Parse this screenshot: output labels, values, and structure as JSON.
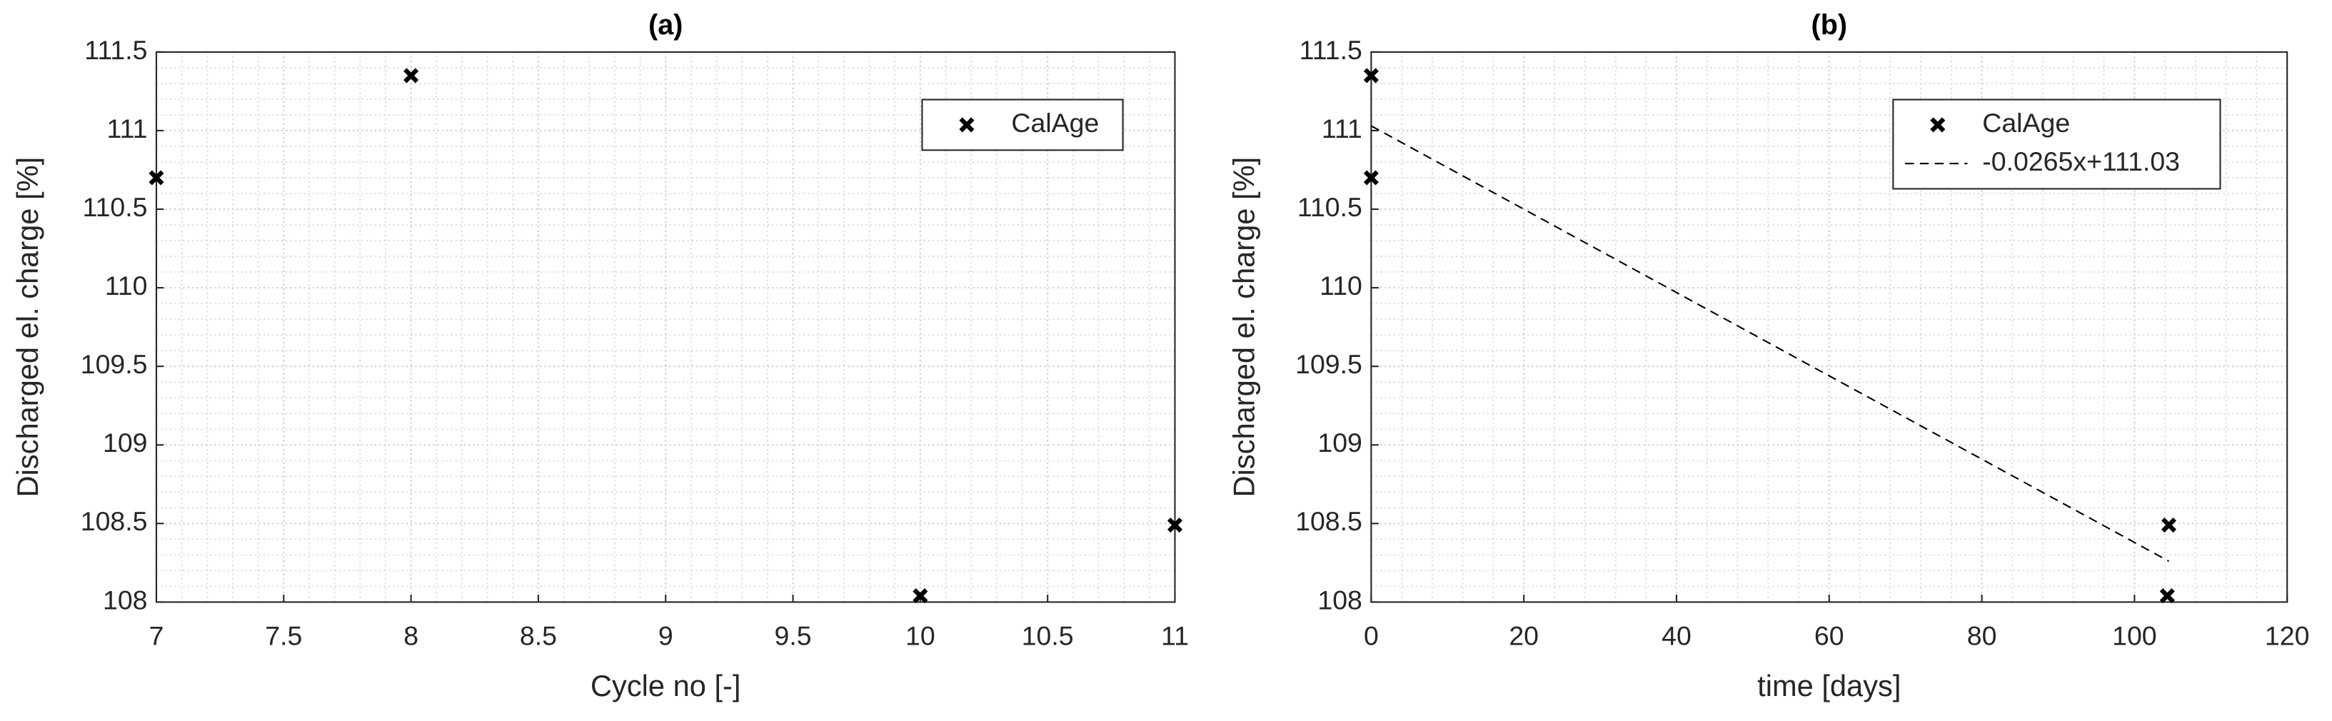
{
  "chart_data": [
    {
      "type": "scatter",
      "title": "(a)",
      "x_label": "Cycle no [-]",
      "y_label": "Discharged el. charge [%]",
      "xlim": [
        7,
        11
      ],
      "xticks": [
        7,
        7.5,
        8,
        8.5,
        9,
        9.5,
        10,
        10.5,
        11
      ],
      "ylim": [
        108,
        111.5
      ],
      "yticks": [
        108,
        108.5,
        109,
        109.5,
        110,
        110.5,
        111,
        111.5
      ],
      "grid": true,
      "minor_grid": true,
      "legend": "upper right",
      "series": [
        {
          "name": "CalAge",
          "color": "#000000",
          "marker": "x",
          "x": [
            7,
            8,
            10,
            11
          ],
          "values": [
            110.7,
            111.35,
            108.04,
            108.49
          ]
        }
      ]
    },
    {
      "type": "scatter",
      "title": "(b)",
      "x_label": "time [days]",
      "y_label": "Discharged el. charge [%]",
      "xlim": [
        0,
        120
      ],
      "xticks": [
        0,
        20,
        40,
        60,
        80,
        100,
        120
      ],
      "ylim": [
        108,
        111.5
      ],
      "yticks": [
        108,
        108.5,
        109,
        109.5,
        110,
        110.5,
        111,
        111.5
      ],
      "grid": true,
      "minor_grid": true,
      "legend": "upper right",
      "series": [
        {
          "name": "CalAge",
          "color": "#000000",
          "marker": "x",
          "x": [
            0,
            0,
            104.5,
            104.3
          ],
          "values": [
            111.35,
            110.7,
            108.49,
            108.04
          ]
        },
        {
          "name": "-0.0265x+111.03",
          "color": "#000000",
          "line": "dashed",
          "x": [
            0,
            104.5
          ],
          "values": [
            111.03,
            108.26
          ]
        }
      ]
    }
  ]
}
